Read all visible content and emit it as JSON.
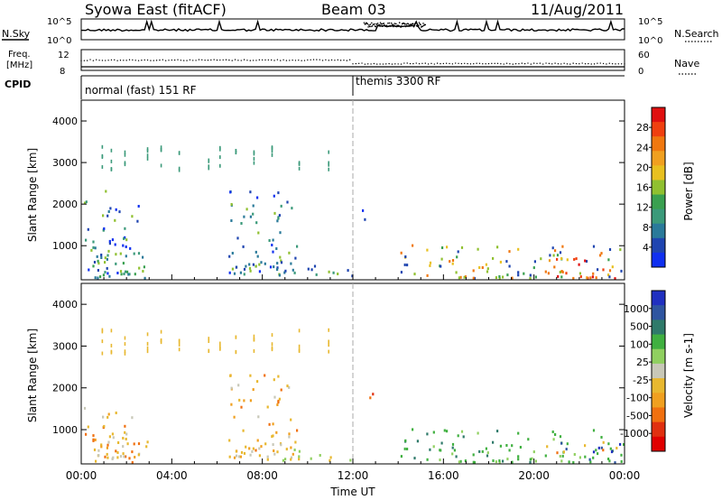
{
  "header": {
    "title": "Syowa East (fitACF)",
    "beam": "Beam 03",
    "date": "11/Aug/2011"
  },
  "top_panels": {
    "nsky_label": "N.Sky",
    "nsearch_label": "N.Search",
    "nsky_ticks": [
      "10^5",
      "10^0"
    ],
    "nsearch_ticks": [
      "10^5",
      "10^0"
    ],
    "freq_label_top": "Freq.",
    "freq_label_bottom": "[MHz]",
    "freq_ticks": [
      "12",
      "8"
    ],
    "nave_label": "Nave",
    "nave_ticks": [
      "60",
      "0"
    ],
    "cpid_label": "CPID",
    "cpid_segments": [
      {
        "label": "normal (fast) 151 RF",
        "start_hour": 0
      },
      {
        "label": "themis 3300 RF",
        "start_hour": 12
      }
    ]
  },
  "chart_data": [
    {
      "type": "heatmap",
      "title": "",
      "xlabel": "",
      "ylabel": "Slant Range [km]",
      "x_unit": "hour UT",
      "xlim": [
        0,
        24
      ],
      "ylim": [
        180,
        4500
      ],
      "y_ticks": [
        "1000",
        "2000",
        "3000",
        "4000"
      ],
      "colorbar": {
        "label": "Power [dB]",
        "ticks": [
          "4",
          "8",
          "12",
          "16",
          "20",
          "24",
          "28"
        ],
        "colors": [
          "#1030f0",
          "#1f45b0",
          "#2a7a9a",
          "#3b9a7a",
          "#3aa050",
          "#90c030",
          "#e8c020",
          "#f0a020",
          "#f07810",
          "#f04010",
          "#e01010"
        ]
      },
      "scatter_regions": [
        {
          "hours": [
            0.0,
            2.6
          ],
          "km": [
            300,
            2300
          ],
          "level": "low"
        },
        {
          "hours": [
            0.3,
            3.0
          ],
          "km": [
            200,
            800
          ],
          "level": "mid"
        },
        {
          "hours": [
            6.5,
            9.5
          ],
          "km": [
            300,
            2300
          ],
          "level": "low"
        },
        {
          "hours": [
            8.0,
            12.0
          ],
          "km": [
            250,
            600
          ],
          "level": "low"
        },
        {
          "hours": [
            12.2,
            12.9
          ],
          "km": [
            1600,
            1900
          ],
          "level": "low"
        },
        {
          "hours": [
            14.0,
            24.0
          ],
          "km": [
            200,
            1000
          ],
          "level": "mixed"
        },
        {
          "hours": [
            20.5,
            24.0
          ],
          "km": [
            200,
            700
          ],
          "level": "high"
        }
      ]
    },
    {
      "type": "heatmap",
      "title": "",
      "xlabel": "Time UT",
      "ylabel": "Slant Range [km]",
      "x_unit": "hour UT",
      "xlim": [
        0,
        24
      ],
      "ylim": [
        180,
        4500
      ],
      "x_ticks": [
        "00:00",
        "04:00",
        "08:00",
        "12:00",
        "16:00",
        "20:00",
        "00:00"
      ],
      "y_ticks": [
        "1000",
        "2000",
        "3000",
        "4000"
      ],
      "colorbar": {
        "label": "Velocity [m s-1]",
        "ticks": [
          "1000",
          "500",
          "100",
          "25",
          "-25",
          "-100",
          "-500",
          "-1000"
        ],
        "colors": [
          "#2030c0",
          "#2f55a0",
          "#2f7a6a",
          "#40b040",
          "#90d060",
          "#c8c8b8",
          "#e8b830",
          "#f0a020",
          "#f07010",
          "#e03010",
          "#e00000"
        ]
      },
      "scatter_regions": [
        {
          "hours": [
            0.0,
            2.6
          ],
          "km": [
            300,
            1700
          ],
          "level": "neg"
        },
        {
          "hours": [
            0.3,
            3.0
          ],
          "km": [
            200,
            800
          ],
          "level": "neg"
        },
        {
          "hours": [
            6.5,
            9.5
          ],
          "km": [
            300,
            2300
          ],
          "level": "neg"
        },
        {
          "hours": [
            8.0,
            12.0
          ],
          "km": [
            250,
            600
          ],
          "level": "zero"
        },
        {
          "hours": [
            12.2,
            12.9
          ],
          "km": [
            1600,
            1900
          ],
          "level": "strongneg"
        },
        {
          "hours": [
            14.0,
            24.0
          ],
          "km": [
            200,
            1000
          ],
          "level": "pos"
        },
        {
          "hours": [
            20.5,
            24.0
          ],
          "km": [
            200,
            700
          ],
          "level": "mixed"
        }
      ]
    }
  ]
}
